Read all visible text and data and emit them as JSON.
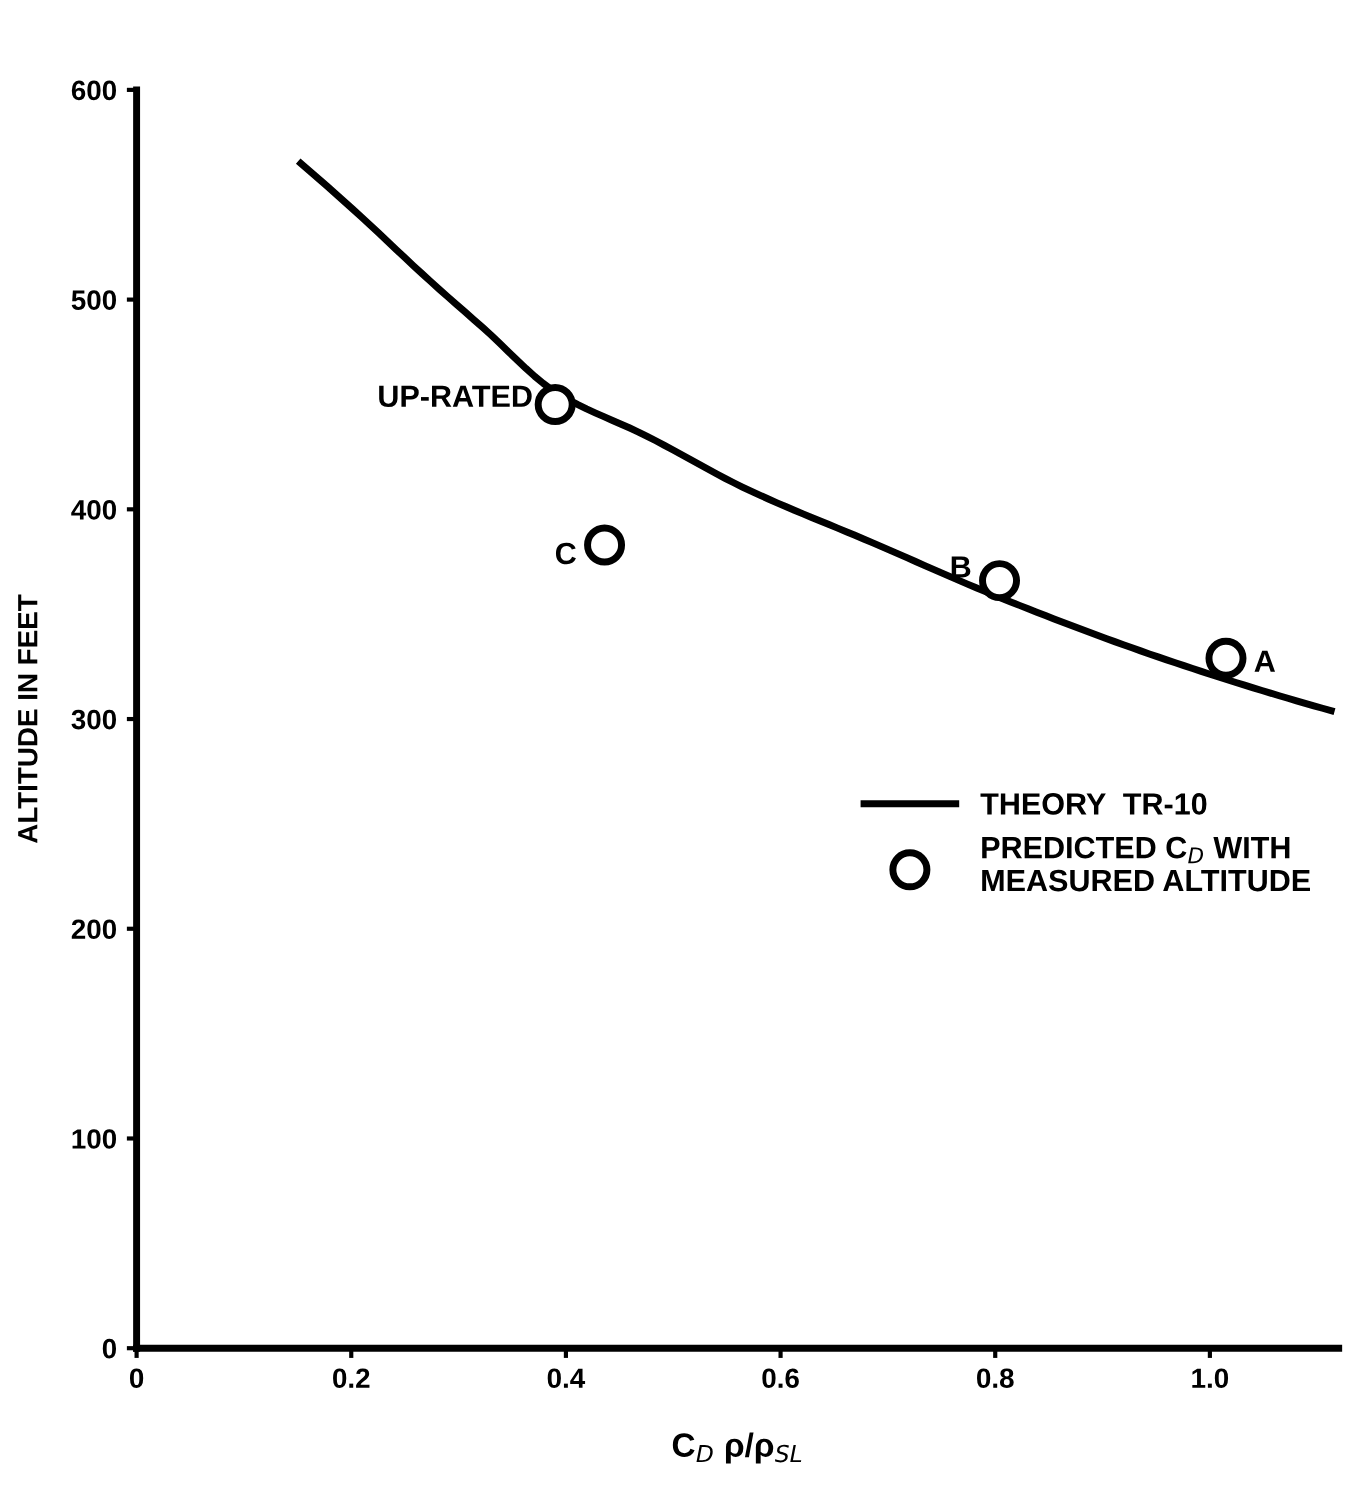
{
  "chart_data": {
    "type": "line",
    "xlabel": "C$_{D}$ ρ/ρ$_{SL}$",
    "ylabel": "ALTITUDE IN FEET",
    "xlim": [
      0,
      1.12
    ],
    "ylim": [
      0,
      600
    ],
    "xticks": [
      0,
      0.2,
      0.4,
      0.6,
      0.8,
      {
        "value": 1.0,
        "label": "1.0"
      }
    ],
    "yticks": [
      0,
      100,
      200,
      300,
      400,
      500,
      600
    ],
    "grid": false,
    "legend": "center right",
    "series": [
      {
        "name": "THEORY  TR-10",
        "color": "#000000",
        "marker": "none",
        "line_style": "solid",
        "x": [
          0.153,
          0.206,
          0.271,
          0.324,
          0.39,
          0.475,
          0.567,
          0.686,
          0.804,
          0.961,
          1.113
        ],
        "values": [
          565,
          541,
          510,
          486,
          456,
          435,
          410,
          384,
          358,
          328,
          304
        ]
      },
      {
        "name": "PREDICTED C$_{D}$ WITH\nMEASURED ALTITUDE",
        "type": "scatter",
        "color": "#000000",
        "marker": "circle",
        "x": [
          0.39,
          0.436,
          0.804,
          1.015
        ],
        "values": [
          450,
          383,
          366,
          329
        ]
      }
    ],
    "annotations": [
      {
        "text": "UP-RATED",
        "x": 0.39,
        "y": 450
      },
      {
        "text": "C",
        "x": 0.436,
        "y": 383
      },
      {
        "text": "B",
        "x": 0.804,
        "y": 366
      },
      {
        "text": "A",
        "x": 1.015,
        "y": 329
      }
    ]
  }
}
